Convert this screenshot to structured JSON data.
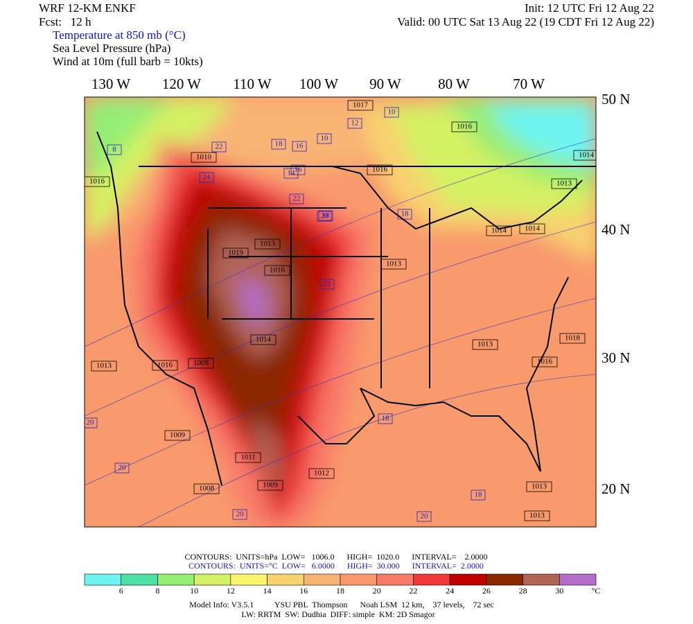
{
  "header": {
    "model": "WRF 12-KM ENKF",
    "forecast": "Fcst:   12 h",
    "init": "Init: 12 UTC Fri 12 Aug 22",
    "valid": "Valid: 00 UTC Sat 13 Aug 22 (19 CDT Fri 12 Aug 22)",
    "fields": [
      "Temperature at 850 mb (°C)",
      "Sea Level Pressure (hPa)",
      "Wind at 10m (full barb = 10kts)"
    ]
  },
  "axes": {
    "longitudes": [
      "130 W",
      "120 W",
      "110 W",
      "100 W",
      "90 W",
      "80 W",
      "70 W"
    ],
    "latitudes": [
      "50 N",
      "40 N",
      "30 N",
      "20 N"
    ]
  },
  "map_labels": [
    "1017",
    "10",
    "12",
    "1016",
    "16",
    "18",
    "10",
    "8",
    "1014",
    "22",
    "1016",
    "16",
    "1016",
    "1010",
    "14",
    "1013",
    "24",
    "22",
    "18",
    "1013",
    "1019",
    "18",
    "20",
    "1016",
    "1014",
    "1014",
    "1013",
    "22",
    "1013",
    "1016",
    "1013",
    "1016",
    "20",
    "1018",
    "1008",
    "1014",
    "1009",
    "1011",
    "1012",
    "1009",
    "1008",
    "20",
    "20",
    "18",
    "18",
    "1013",
    "1013",
    "20"
  ],
  "contour_info": [
    "CONTOURS:  UNITS=hPa  LOW=   1006.0      HIGH=  1020.0      INTERVAL=    2.0000",
    "CONTOURS:  UNITS=°C  LOW=   6.0000      HIGH=  30.000      INTERVAL=  2.0000"
  ],
  "colorbar": {
    "colors": [
      "#6ef4f0",
      "#4ee0a4",
      "#96ee74",
      "#d4f064",
      "#f8f46e",
      "#f8d270",
      "#f8b474",
      "#f89a6c",
      "#f87a6a",
      "#f03a3a",
      "#c00000",
      "#8a2800",
      "#b06454",
      "#b46ec8"
    ],
    "ticks": [
      6,
      8,
      10,
      12,
      14,
      16,
      18,
      20,
      22,
      24,
      26,
      28,
      30
    ],
    "unit": "°C"
  },
  "footer": [
    "Model Info: V3.5.1          YSU PBL  Thompson      Noah LSM  12 km,    37 levels,    72 sec",
    "LW: RRTM  SW: Dudhia  DIFF: simple  KM: 2D Smagor"
  ]
}
